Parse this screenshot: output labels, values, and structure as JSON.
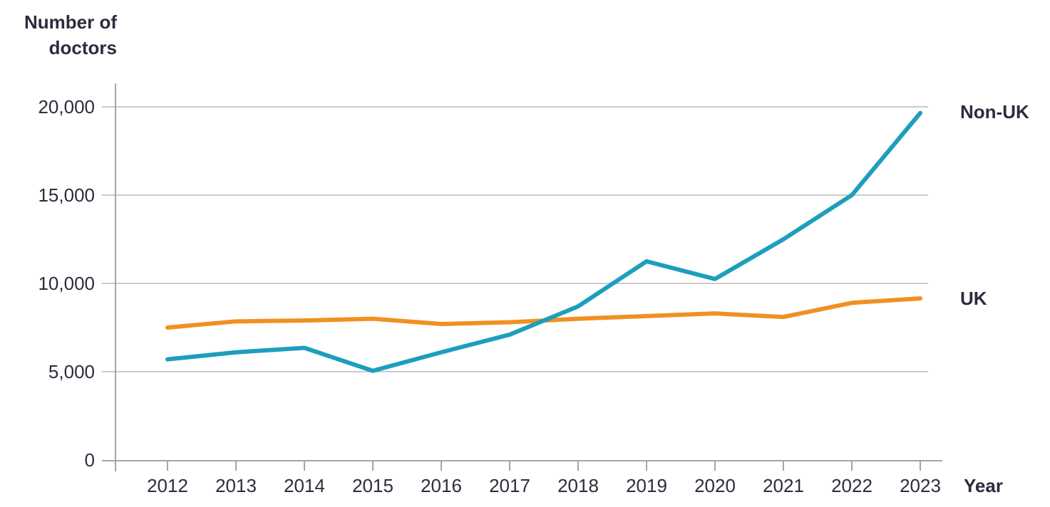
{
  "colors": {
    "text": "#2d2c3c",
    "gridline": "#cbcbcb",
    "axis": "#a5a5a5",
    "background": "#ffffff",
    "non_uk_line": "#1e9ebd",
    "uk_line": "#f19021"
  },
  "labels": {
    "y_axis_title": "Number of doctors",
    "x_axis_title": "Year",
    "series_non_uk": "Non-UK",
    "series_uk": "UK"
  },
  "chart_data": {
    "type": "line",
    "title": "",
    "xlabel": "Year",
    "ylabel": "Number of doctors",
    "x": [
      2012,
      2013,
      2014,
      2015,
      2016,
      2017,
      2018,
      2019,
      2020,
      2021,
      2022,
      2023
    ],
    "x_tick_labels": [
      "2012",
      "2013",
      "2014",
      "2015",
      "2016",
      "2017",
      "2018",
      "2019",
      "2020",
      "2021",
      "2022",
      "2023"
    ],
    "series": [
      {
        "name": "Non-UK",
        "color": "#1e9ebd",
        "values": [
          5700,
          6100,
          6350,
          5050,
          6100,
          7100,
          8700,
          11250,
          10250,
          12500,
          15000,
          19650
        ]
      },
      {
        "name": "UK",
        "color": "#f19021",
        "values": [
          7500,
          7850,
          7900,
          8000,
          7700,
          7800,
          8000,
          8150,
          8300,
          8100,
          8900,
          9150
        ]
      }
    ],
    "yticks": [
      0,
      5000,
      10000,
      15000,
      20000
    ],
    "ytick_labels": [
      "0",
      "5,000",
      "10,000",
      "15,000",
      "20,000"
    ],
    "ylim": [
      0,
      20000
    ],
    "grid": "horizontal",
    "legend_position": "right-of-line-ends"
  }
}
